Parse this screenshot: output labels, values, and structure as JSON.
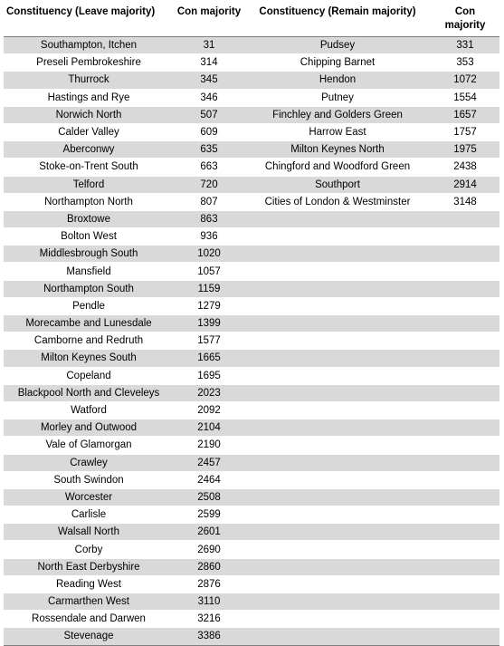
{
  "headers": {
    "leave_constituency": "Constituency (Leave majority)",
    "leave_majority": "Con majority",
    "remain_constituency": "Constituency (Remain majority)",
    "remain_majority": "Con majority"
  },
  "rows": [
    {
      "leave": "Southampton, Itchen",
      "leave_maj": "31",
      "remain": "Pudsey",
      "remain_maj": "331"
    },
    {
      "leave": "Preseli Pembrokeshire",
      "leave_maj": "314",
      "remain": "Chipping Barnet",
      "remain_maj": "353"
    },
    {
      "leave": "Thurrock",
      "leave_maj": "345",
      "remain": "Hendon",
      "remain_maj": "1072"
    },
    {
      "leave": "Hastings and Rye",
      "leave_maj": "346",
      "remain": "Putney",
      "remain_maj": "1554"
    },
    {
      "leave": "Norwich North",
      "leave_maj": "507",
      "remain": "Finchley and Golders Green",
      "remain_maj": "1657"
    },
    {
      "leave": "Calder Valley",
      "leave_maj": "609",
      "remain": "Harrow East",
      "remain_maj": "1757"
    },
    {
      "leave": "Aberconwy",
      "leave_maj": "635",
      "remain": "Milton Keynes North",
      "remain_maj": "1975"
    },
    {
      "leave": "Stoke-on-Trent South",
      "leave_maj": "663",
      "remain": "Chingford and Woodford Green",
      "remain_maj": "2438"
    },
    {
      "leave": "Telford",
      "leave_maj": "720",
      "remain": "Southport",
      "remain_maj": "2914"
    },
    {
      "leave": "Northampton North",
      "leave_maj": "807",
      "remain": "Cities of London & Westminster",
      "remain_maj": "3148"
    },
    {
      "leave": "Broxtowe",
      "leave_maj": "863",
      "remain": "",
      "remain_maj": ""
    },
    {
      "leave": "Bolton West",
      "leave_maj": "936",
      "remain": "",
      "remain_maj": ""
    },
    {
      "leave": "Middlesbrough South",
      "leave_maj": "1020",
      "remain": "",
      "remain_maj": ""
    },
    {
      "leave": "Mansfield",
      "leave_maj": "1057",
      "remain": "",
      "remain_maj": ""
    },
    {
      "leave": "Northampton South",
      "leave_maj": "1159",
      "remain": "",
      "remain_maj": ""
    },
    {
      "leave": "Pendle",
      "leave_maj": "1279",
      "remain": "",
      "remain_maj": ""
    },
    {
      "leave": "Morecambe and Lunesdale",
      "leave_maj": "1399",
      "remain": "",
      "remain_maj": ""
    },
    {
      "leave": "Camborne and Redruth",
      "leave_maj": "1577",
      "remain": "",
      "remain_maj": ""
    },
    {
      "leave": "Milton Keynes South",
      "leave_maj": "1665",
      "remain": "",
      "remain_maj": ""
    },
    {
      "leave": "Copeland",
      "leave_maj": "1695",
      "remain": "",
      "remain_maj": ""
    },
    {
      "leave": "Blackpool North and Cleveleys",
      "leave_maj": "2023",
      "remain": "",
      "remain_maj": ""
    },
    {
      "leave": "Watford",
      "leave_maj": "2092",
      "remain": "",
      "remain_maj": ""
    },
    {
      "leave": "Morley and Outwood",
      "leave_maj": "2104",
      "remain": "",
      "remain_maj": ""
    },
    {
      "leave": "Vale of Glamorgan",
      "leave_maj": "2190",
      "remain": "",
      "remain_maj": ""
    },
    {
      "leave": "Crawley",
      "leave_maj": "2457",
      "remain": "",
      "remain_maj": ""
    },
    {
      "leave": "South Swindon",
      "leave_maj": "2464",
      "remain": "",
      "remain_maj": ""
    },
    {
      "leave": "Worcester",
      "leave_maj": "2508",
      "remain": "",
      "remain_maj": ""
    },
    {
      "leave": "Carlisle",
      "leave_maj": "2599",
      "remain": "",
      "remain_maj": ""
    },
    {
      "leave": "Walsall North",
      "leave_maj": "2601",
      "remain": "",
      "remain_maj": ""
    },
    {
      "leave": "Corby",
      "leave_maj": "2690",
      "remain": "",
      "remain_maj": ""
    },
    {
      "leave": "North East Derbyshire",
      "leave_maj": "2860",
      "remain": "",
      "remain_maj": ""
    },
    {
      "leave": "Reading West",
      "leave_maj": "2876",
      "remain": "",
      "remain_maj": ""
    },
    {
      "leave": "Carmarthen West",
      "leave_maj": "3110",
      "remain": "",
      "remain_maj": ""
    },
    {
      "leave": "Rossendale and Darwen",
      "leave_maj": "3216",
      "remain": "",
      "remain_maj": ""
    },
    {
      "leave": "Stevenage",
      "leave_maj": "3386",
      "remain": "",
      "remain_maj": ""
    }
  ],
  "colors": {
    "shaded_row": "#d9d9d9",
    "rule": "#7f7f7f"
  }
}
